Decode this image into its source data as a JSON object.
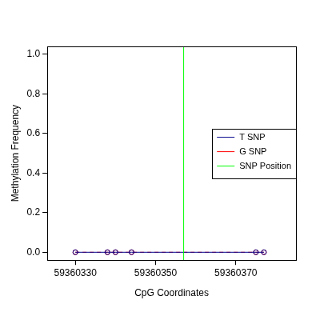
{
  "chart_data": {
    "type": "line",
    "x_label": "CpG Coordinates",
    "y_label": "Methylation Frequency",
    "x": [
      59360330,
      59360338,
      59360340,
      59360344,
      59360375,
      59360377
    ],
    "series": [
      {
        "name": "T SNP",
        "color": "#00008b",
        "values": [
          0,
          0,
          0,
          0,
          0,
          0
        ],
        "marker": "circle",
        "line_style": "solid"
      },
      {
        "name": "G SNP",
        "color": "#ff0000",
        "values": [
          0,
          0,
          0,
          0,
          0,
          0
        ],
        "marker": "circle",
        "line_style": "dashed"
      }
    ],
    "snp_position": {
      "name": "SNP Position",
      "x": 59360357,
      "color": "#00ff00"
    },
    "xlim": [
      59360323,
      59360385
    ],
    "xticks": [
      59360330,
      59360350,
      59360370
    ],
    "ylim": [
      -0.04,
      1.04
    ],
    "yticks": [
      {
        "value": 0,
        "label": "0.0"
      },
      {
        "value": 0.2,
        "label": "0.2"
      },
      {
        "value": 0.4,
        "label": "0.4"
      },
      {
        "value": 0.6,
        "label": "0.6"
      },
      {
        "value": 0.8,
        "label": "0.8"
      },
      {
        "value": 1,
        "label": "1.0"
      }
    ],
    "grid": false,
    "legend": "right"
  }
}
